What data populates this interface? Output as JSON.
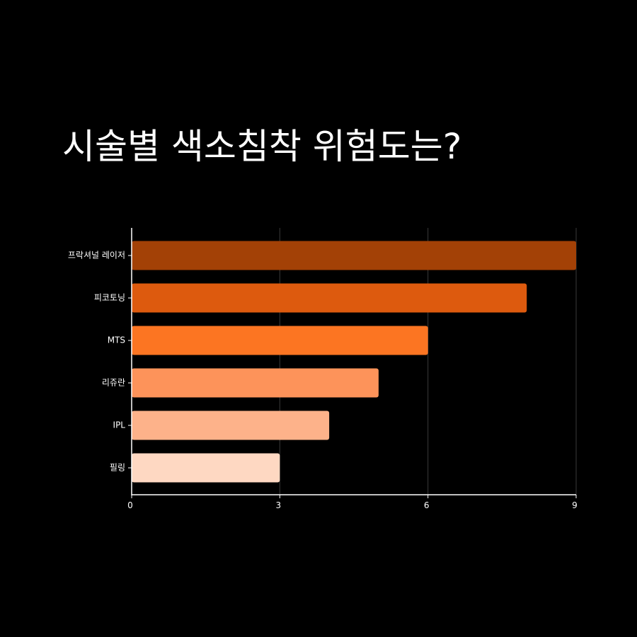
{
  "page": {
    "background": "#000000"
  },
  "chart_data": {
    "type": "bar",
    "orientation": "horizontal",
    "title": "시술별 색소침착 위험도는?",
    "xlabel": "",
    "ylabel": "",
    "categories": [
      "프락셔널 레이저",
      "피코토닝",
      "MTS",
      "리쥬란",
      "IPL",
      "필링"
    ],
    "values": [
      9,
      8,
      6,
      5,
      4,
      3
    ],
    "colors": [
      "#a34106",
      "#dd5a0e",
      "#fc7522",
      "#fd935a",
      "#fdb28a",
      "#fed8c2"
    ],
    "xlim": [
      0,
      9
    ],
    "xticks": [
      0,
      3,
      6,
      9
    ],
    "grid": "vertical",
    "legend": "none"
  }
}
